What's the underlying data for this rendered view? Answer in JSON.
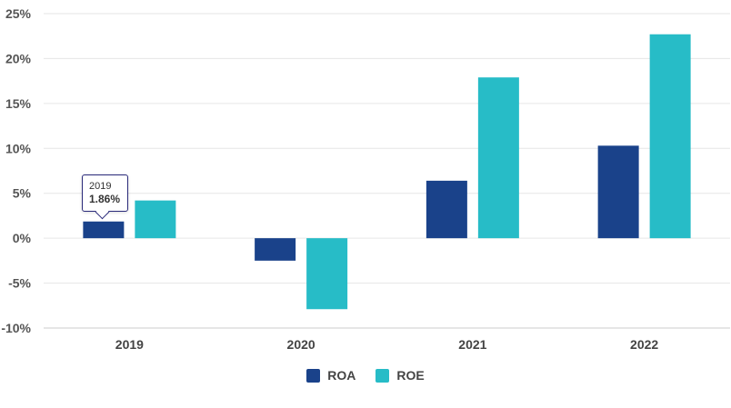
{
  "chart_data": {
    "type": "bar",
    "categories": [
      "2019",
      "2020",
      "2021",
      "2022"
    ],
    "series": [
      {
        "name": "ROA",
        "color": "#1a428a",
        "values": [
          1.86,
          -2.5,
          6.4,
          10.3
        ]
      },
      {
        "name": "ROE",
        "color": "#27bcc7",
        "values": [
          4.2,
          -7.9,
          17.9,
          22.7
        ]
      }
    ],
    "ylim": [
      -10,
      25
    ],
    "yticks": [
      {
        "value": 25,
        "label": "25%"
      },
      {
        "value": 20,
        "label": "20%"
      },
      {
        "value": 15,
        "label": "15%"
      },
      {
        "value": 10,
        "label": "10%"
      },
      {
        "value": 5,
        "label": "5%"
      },
      {
        "value": 0,
        "label": "0%"
      },
      {
        "value": -5,
        "label": "-5%"
      },
      {
        "value": -10,
        "label": "-10%"
      }
    ],
    "grid": true,
    "legend_position": "bottom-center",
    "tooltip": {
      "category": "2019",
      "value_label": "1.86%"
    }
  }
}
